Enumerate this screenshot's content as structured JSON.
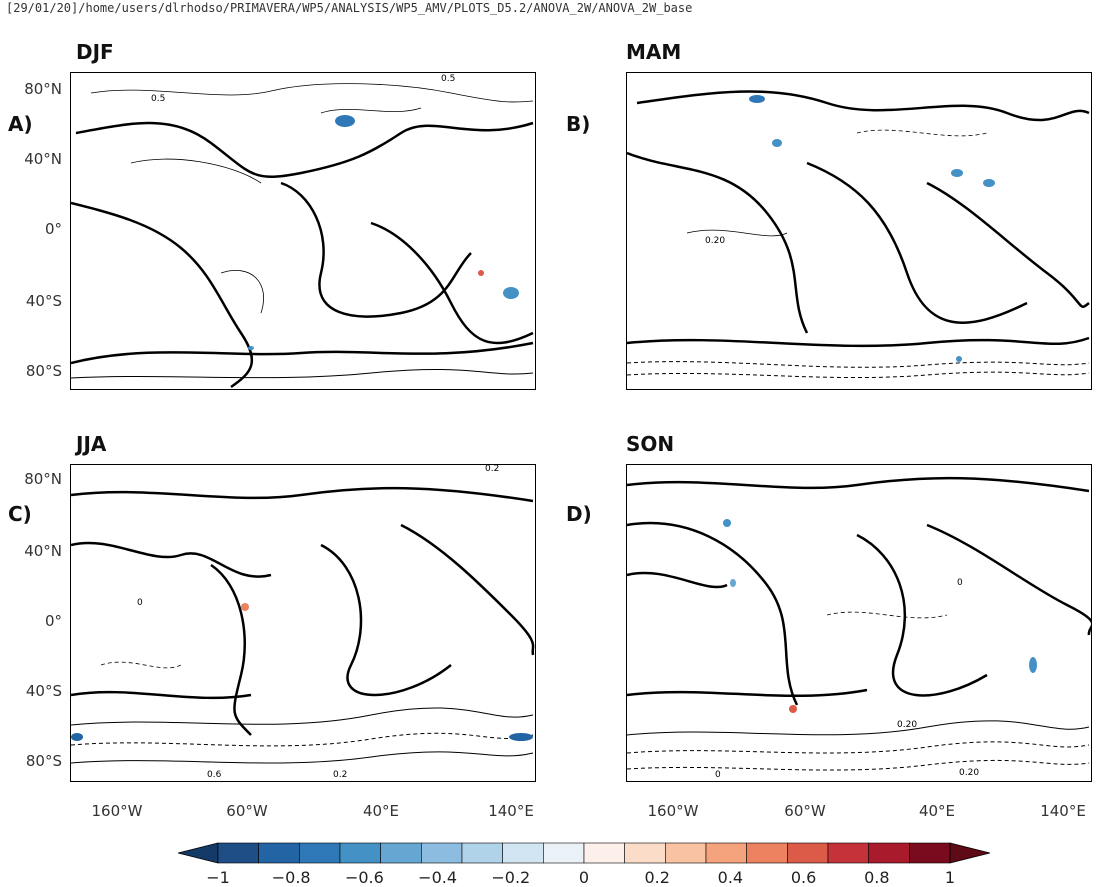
{
  "header": {
    "path": "[29/01/20]/home/users/dlrhodso/PRIMAVERA/WP5/ANALYSIS/WP5_AMV/PLOTS_D5.2/ANOVA_2W/ANOVA_2W_base"
  },
  "panels": [
    {
      "id": "A",
      "season": "DJF",
      "letter": "A)",
      "contour_labels": [
        "0.5",
        "0.5"
      ]
    },
    {
      "id": "B",
      "season": "MAM",
      "letter": "B)",
      "contour_labels": [
        "0.20"
      ]
    },
    {
      "id": "C",
      "season": "JJA",
      "letter": "C)",
      "contour_labels": [
        "0.2",
        "0",
        "0.6",
        "0.2"
      ]
    },
    {
      "id": "D",
      "season": "SON",
      "letter": "D)",
      "contour_labels": [
        "0",
        "0.20",
        "0.20",
        "0"
      ]
    }
  ],
  "axes": {
    "lat_labels": [
      "80°N",
      "40°N",
      "0°",
      "40°S",
      "80°S"
    ],
    "lon_labels": [
      "160°W",
      "60°W",
      "40°E",
      "140°E"
    ]
  },
  "colorbar": {
    "labels": [
      "−1",
      "−0.8",
      "−0.6",
      "−0.4",
      "−0.2",
      "0",
      "0.2",
      "0.4",
      "0.6",
      "0.8",
      "1"
    ],
    "colors": [
      "#1f4e86",
      "#2364a5",
      "#2f78b8",
      "#4491c6",
      "#66a6d2",
      "#8cbde0",
      "#b1d3ea",
      "#d2e5f2",
      "#eaf2f8",
      "#fdf0ea",
      "#fbdcc9",
      "#f8c2a3",
      "#f4a37c",
      "#ec825f",
      "#db5b48",
      "#c53239",
      "#a81a2c",
      "#7a0a1d"
    ],
    "min_color": "#143a67",
    "max_color": "#5e0a17"
  }
}
